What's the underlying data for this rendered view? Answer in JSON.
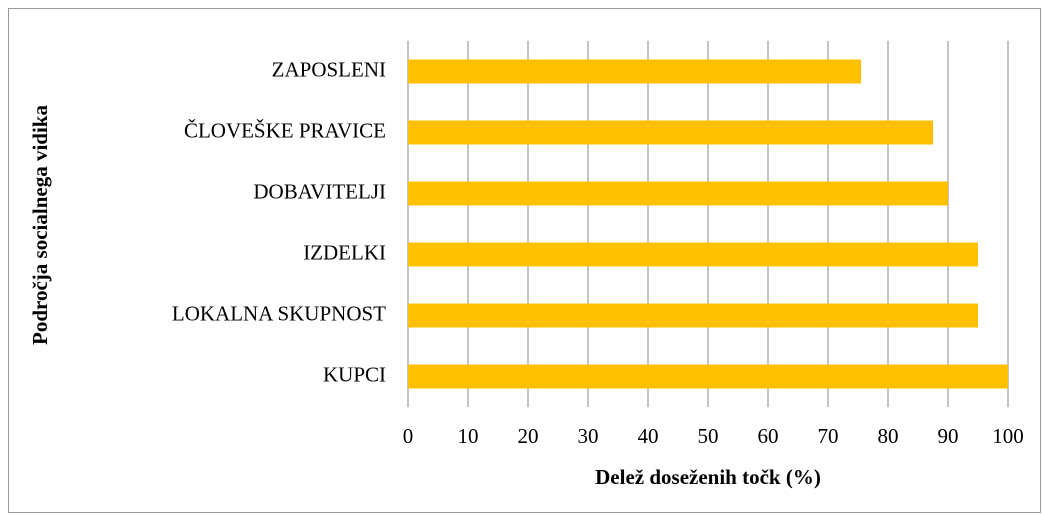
{
  "chart_data": {
    "type": "barh",
    "xlabel": "Delež doseženih točk (%)",
    "ylabel": "Področja socialnega vidika",
    "categories": [
      "ZAPOSLENI",
      "ČLOVEŠKE PRAVICE",
      "DOBAVITELJI",
      "IZDELKI",
      "LOKALNA SKUPNOST",
      "KUPCI"
    ],
    "values": [
      75.5,
      87.5,
      90,
      95,
      95,
      100
    ],
    "color": "#ffc000",
    "xlim": [
      0,
      100
    ],
    "xticks": [
      0,
      10,
      20,
      30,
      40,
      50,
      60,
      70,
      80,
      90,
      100
    ],
    "grid": true
  }
}
